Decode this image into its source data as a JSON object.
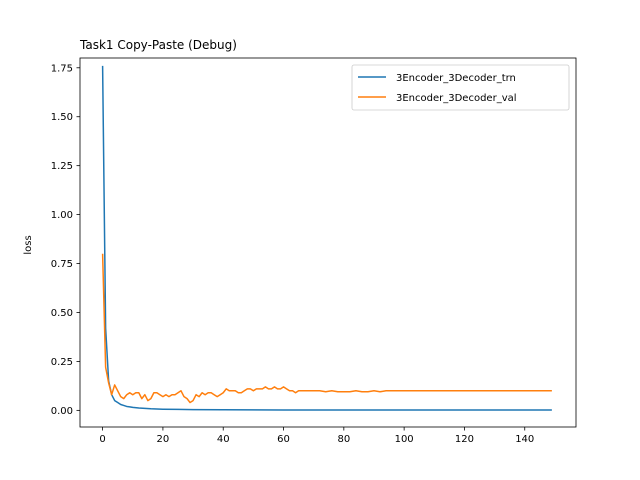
{
  "chart_data": {
    "type": "line",
    "title": "Task1 Copy-Paste (Debug)",
    "xlabel": "",
    "ylabel": "loss",
    "xlim": [
      -7.5,
      157
    ],
    "ylim": [
      -0.085,
      1.8
    ],
    "xticks": [
      0,
      20,
      40,
      60,
      80,
      100,
      120,
      140
    ],
    "xtick_labels": [
      "0",
      "20",
      "40",
      "60",
      "80",
      "100",
      "120",
      "140"
    ],
    "yticks": [
      0.0,
      0.25,
      0.5,
      0.75,
      1.0,
      1.25,
      1.5,
      1.75
    ],
    "ytick_labels": [
      "0.00",
      "0.25",
      "0.50",
      "0.75",
      "1.00",
      "1.25",
      "1.50",
      "1.75"
    ],
    "grid": false,
    "legend_position": "top-right",
    "series": [
      {
        "name": "3Encoder_3Decoder_trn",
        "color": "#1f77b4",
        "points": [
          [
            0,
            1.76
          ],
          [
            1,
            0.42
          ],
          [
            2,
            0.15
          ],
          [
            3,
            0.08
          ],
          [
            4,
            0.05
          ],
          [
            5,
            0.04
          ],
          [
            6,
            0.03
          ],
          [
            7,
            0.025
          ],
          [
            8,
            0.02
          ],
          [
            9,
            0.018
          ],
          [
            10,
            0.015
          ],
          [
            12,
            0.012
          ],
          [
            14,
            0.01
          ],
          [
            16,
            0.008
          ],
          [
            18,
            0.007
          ],
          [
            20,
            0.006
          ],
          [
            25,
            0.005
          ],
          [
            30,
            0.004
          ],
          [
            40,
            0.003
          ],
          [
            60,
            0.002
          ],
          [
            80,
            0.002
          ],
          [
            100,
            0.002
          ],
          [
            120,
            0.002
          ],
          [
            149,
            0.002
          ]
        ]
      },
      {
        "name": "3Encoder_3Decoder_val",
        "color": "#ff7f0e",
        "points": [
          [
            0,
            0.8
          ],
          [
            1,
            0.22
          ],
          [
            2,
            0.14
          ],
          [
            3,
            0.08
          ],
          [
            4,
            0.13
          ],
          [
            5,
            0.1
          ],
          [
            6,
            0.07
          ],
          [
            7,
            0.06
          ],
          [
            8,
            0.08
          ],
          [
            9,
            0.09
          ],
          [
            10,
            0.08
          ],
          [
            11,
            0.09
          ],
          [
            12,
            0.09
          ],
          [
            13,
            0.06
          ],
          [
            14,
            0.08
          ],
          [
            15,
            0.05
          ],
          [
            16,
            0.06
          ],
          [
            17,
            0.09
          ],
          [
            18,
            0.09
          ],
          [
            19,
            0.08
          ],
          [
            20,
            0.07
          ],
          [
            21,
            0.08
          ],
          [
            22,
            0.07
          ],
          [
            23,
            0.08
          ],
          [
            24,
            0.08
          ],
          [
            25,
            0.09
          ],
          [
            26,
            0.1
          ],
          [
            27,
            0.07
          ],
          [
            28,
            0.06
          ],
          [
            29,
            0.04
          ],
          [
            30,
            0.05
          ],
          [
            31,
            0.08
          ],
          [
            32,
            0.07
          ],
          [
            33,
            0.09
          ],
          [
            34,
            0.08
          ],
          [
            35,
            0.09
          ],
          [
            36,
            0.09
          ],
          [
            37,
            0.08
          ],
          [
            38,
            0.07
          ],
          [
            39,
            0.08
          ],
          [
            40,
            0.09
          ],
          [
            41,
            0.11
          ],
          [
            42,
            0.1
          ],
          [
            43,
            0.1
          ],
          [
            44,
            0.1
          ],
          [
            45,
            0.09
          ],
          [
            46,
            0.09
          ],
          [
            47,
            0.1
          ],
          [
            48,
            0.11
          ],
          [
            49,
            0.11
          ],
          [
            50,
            0.1
          ],
          [
            51,
            0.11
          ],
          [
            52,
            0.11
          ],
          [
            53,
            0.11
          ],
          [
            54,
            0.12
          ],
          [
            55,
            0.11
          ],
          [
            56,
            0.11
          ],
          [
            57,
            0.12
          ],
          [
            58,
            0.11
          ],
          [
            59,
            0.11
          ],
          [
            60,
            0.12
          ],
          [
            61,
            0.11
          ],
          [
            62,
            0.1
          ],
          [
            63,
            0.1
          ],
          [
            64,
            0.09
          ],
          [
            65,
            0.1
          ],
          [
            66,
            0.1
          ],
          [
            67,
            0.1
          ],
          [
            68,
            0.1
          ],
          [
            69,
            0.1
          ],
          [
            70,
            0.1
          ],
          [
            72,
            0.1
          ],
          [
            74,
            0.095
          ],
          [
            76,
            0.1
          ],
          [
            78,
            0.095
          ],
          [
            80,
            0.095
          ],
          [
            82,
            0.095
          ],
          [
            84,
            0.1
          ],
          [
            86,
            0.095
          ],
          [
            88,
            0.095
          ],
          [
            90,
            0.1
          ],
          [
            92,
            0.095
          ],
          [
            94,
            0.1
          ],
          [
            96,
            0.1
          ],
          [
            98,
            0.1
          ],
          [
            100,
            0.1
          ],
          [
            105,
            0.1
          ],
          [
            110,
            0.1
          ],
          [
            115,
            0.1
          ],
          [
            120,
            0.1
          ],
          [
            125,
            0.1
          ],
          [
            130,
            0.1
          ],
          [
            135,
            0.1
          ],
          [
            140,
            0.1
          ],
          [
            145,
            0.1
          ],
          [
            149,
            0.1
          ]
        ]
      }
    ]
  }
}
